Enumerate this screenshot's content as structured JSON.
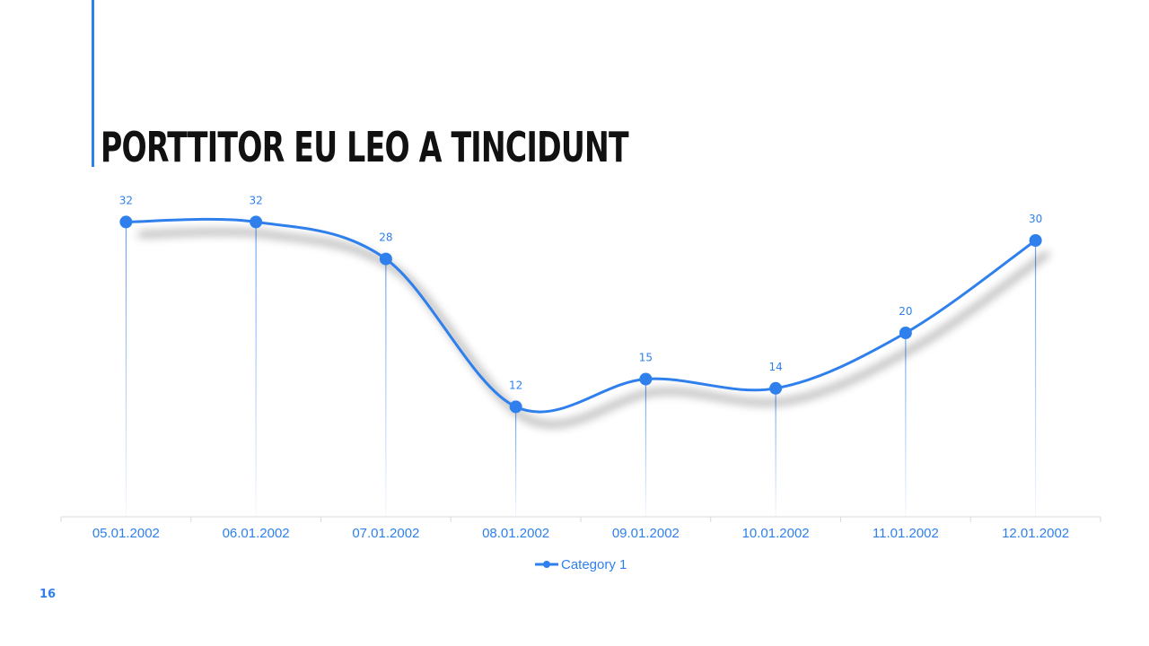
{
  "slide": {
    "title": "PORTTITOR EU LEO A TINCIDUNT",
    "page_number": "16"
  },
  "colors": {
    "accent": "#2f80ed",
    "title": "#111111",
    "axis": "#d9d9d9",
    "label": "#2f80ed"
  },
  "chart_data": {
    "type": "line",
    "categories": [
      "05.01.2002",
      "06.01.2002",
      "07.01.2002",
      "08.01.2002",
      "09.01.2002",
      "10.01.2002",
      "11.01.2002",
      "12.01.2002"
    ],
    "series": [
      {
        "name": "Category 1",
        "values": [
          32,
          32,
          28,
          12,
          15,
          14,
          20,
          30
        ]
      }
    ],
    "smooth": true,
    "markers": true,
    "data_labels": true,
    "drop_lines": true,
    "legend_position": "bottom",
    "grid": false,
    "ylim": [
      0,
      35
    ]
  }
}
